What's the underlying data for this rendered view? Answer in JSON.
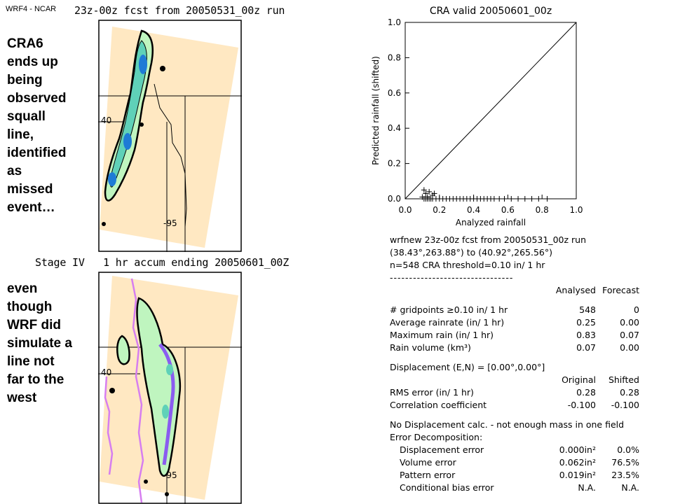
{
  "credit": "WRF4 - NCAR",
  "top_map": {
    "title": "23z-00z fcst from 20050531_00z run",
    "lat_label": "40",
    "lon_label": "-95"
  },
  "bottom_map": {
    "title": "Stage IV   1 hr accum ending 20050601_00Z",
    "lat_label": "40",
    "lon_label": "-95"
  },
  "annotation_top": [
    "CRA6",
    "ends up",
    "being",
    "observed",
    "squall",
    "line,",
    "identified",
    "as",
    "missed",
    "event…"
  ],
  "annotation_bottom": [
    "even",
    "though",
    "WRF did",
    "simulate a",
    "line not",
    "far to the",
    "west"
  ],
  "chart_data": {
    "type": "scatter",
    "title": "CRA valid 20050601_00z",
    "xlabel": "Analyzed rainfall",
    "ylabel": "Predicted rainfall (shifted)",
    "xlim": [
      0.0,
      1.0
    ],
    "ylim": [
      0.0,
      1.0
    ],
    "xticks": [
      "0.0",
      "0.2",
      "0.4",
      "0.6",
      "0.8",
      "1.0"
    ],
    "yticks": [
      "0.0",
      "0.2",
      "0.4",
      "0.6",
      "0.8",
      "1.0"
    ],
    "diagonal": true,
    "points": [
      [
        0.11,
        0.05
      ],
      [
        0.12,
        0.03
      ],
      [
        0.14,
        0.04
      ],
      [
        0.13,
        0.01
      ],
      [
        0.16,
        0.02
      ],
      [
        0.17,
        0.03
      ],
      [
        0.1,
        0.01
      ],
      [
        0.11,
        0.0
      ],
      [
        0.12,
        0.0
      ],
      [
        0.13,
        0.0
      ],
      [
        0.14,
        0.0
      ],
      [
        0.15,
        0.0
      ],
      [
        0.16,
        0.0
      ],
      [
        0.18,
        0.0
      ],
      [
        0.2,
        0.0
      ],
      [
        0.22,
        0.0
      ],
      [
        0.24,
        0.0
      ],
      [
        0.26,
        0.0
      ],
      [
        0.28,
        0.0
      ],
      [
        0.3,
        0.0
      ],
      [
        0.32,
        0.0
      ],
      [
        0.34,
        0.0
      ],
      [
        0.36,
        0.0
      ],
      [
        0.38,
        0.0
      ],
      [
        0.4,
        0.0
      ],
      [
        0.42,
        0.0
      ],
      [
        0.44,
        0.0
      ],
      [
        0.46,
        0.0
      ],
      [
        0.48,
        0.0
      ],
      [
        0.5,
        0.0
      ],
      [
        0.52,
        0.0
      ],
      [
        0.55,
        0.0
      ],
      [
        0.58,
        0.0
      ],
      [
        0.62,
        0.0
      ],
      [
        0.66,
        0.0
      ],
      [
        0.7,
        0.0
      ],
      [
        0.74,
        0.0
      ],
      [
        0.78,
        0.0
      ],
      [
        0.83,
        0.0
      ]
    ]
  },
  "stats": {
    "header1": "wrfnew 23z-00z fcst from 20050531_00z run",
    "header2": "(38.43°,263.88°) to (40.92°,265.56°)",
    "header3": "n=548   CRA threshold=0.10 in/ 1 hr",
    "separator": "--------------------------------",
    "col_analysed": "Analysed",
    "col_forecast": "Forecast",
    "rows1": [
      {
        "label": "# gridpoints ≥0.10 in/ 1 hr",
        "a": "548",
        "f": "0"
      },
      {
        "label": "Average rainrate (in/ 1 hr)",
        "a": "0.25",
        "f": "0.00"
      },
      {
        "label": "Maximum rain (in/ 1 hr)",
        "a": "0.83",
        "f": "0.07"
      },
      {
        "label": "Rain volume (km³)",
        "a": "0.07",
        "f": "0.00"
      }
    ],
    "displacement": "Displacement (E,N) = [0.00°,0.00°]",
    "col_original": "Original",
    "col_shifted": "Shifted",
    "rows2": [
      {
        "label": "RMS error (in/ 1 hr)",
        "a": "0.28",
        "f": "0.28"
      },
      {
        "label": "Correlation coefficient",
        "a": "-0.100",
        "f": "-0.100"
      }
    ],
    "no_disp": "No Displacement calc. - not enough mass in one field",
    "error_decomp": "Error Decomposition:",
    "rows3": [
      {
        "label": "Displacement error",
        "a": "0.000in²",
        "f": "0.0%"
      },
      {
        "label": "Volume error",
        "a": "0.062in²",
        "f": "76.5%"
      },
      {
        "label": "Pattern error",
        "a": "0.019in²",
        "f": "23.5%"
      },
      {
        "label": "Conditional bias error",
        "a": "N.A.",
        "f": "N.A."
      }
    ]
  }
}
